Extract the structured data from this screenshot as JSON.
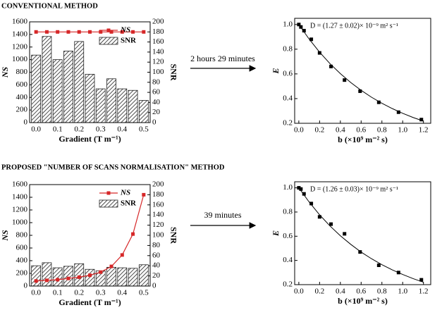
{
  "chart_data": [
    {
      "type": "combo",
      "section_title": "CONVENTIONAL METHOD",
      "arrow_label": "2 hours 29 minutes",
      "x_label": "Gradient (T m⁻¹)",
      "y_label": "NS",
      "y2_label": "SNR",
      "x": [
        0,
        0.05,
        0.1,
        0.15,
        0.2,
        0.25,
        0.3,
        0.35,
        0.4,
        0.45,
        0.5
      ],
      "xlim": [
        -0.03,
        0.53
      ],
      "xticks": [
        {
          "value": 0,
          "label": "0.0"
        },
        0.1,
        0.2,
        0.3,
        0.4,
        0.5
      ],
      "ylim": [
        0,
        1600
      ],
      "yticks": [
        0,
        200,
        400,
        600,
        800,
        1000,
        1200,
        1400,
        1600
      ],
      "y2lim": [
        0,
        200
      ],
      "y2ticks": [
        0,
        20,
        40,
        60,
        80,
        100,
        120,
        140,
        160,
        180,
        200
      ],
      "legend": "upper right",
      "series": [
        {
          "name": "NS",
          "color": "#d62728",
          "kind": "line",
          "values": [
            1440,
            1440,
            1440,
            1440,
            1440,
            1440,
            1440,
            1440,
            1440,
            1440,
            1440
          ]
        },
        {
          "name": "SNR",
          "color": "#555555",
          "kind": "bar",
          "axis": "y2",
          "values": [
            134,
            171,
            125,
            142,
            161,
            96,
            67,
            87,
            67,
            64,
            44
          ]
        }
      ]
    },
    {
      "type": "scatter",
      "annotation": "D = (1.27 ± 0.02)× 10⁻⁹ m² s⁻¹",
      "x_label": "b (×10⁹ m⁻² s)",
      "y_label": "E",
      "color": "#000000",
      "x": [
        0,
        0.02,
        0.05,
        0.12,
        0.2,
        0.31,
        0.44,
        0.59,
        0.77,
        0.96,
        1.18
      ],
      "values": [
        1.0,
        0.98,
        0.95,
        0.88,
        0.77,
        0.66,
        0.55,
        0.46,
        0.37,
        0.29,
        0.23
      ],
      "fit": {
        "x": [
          0,
          0.1,
          0.2,
          0.3,
          0.4,
          0.5,
          0.6,
          0.7,
          0.8,
          0.9,
          1.0,
          1.1,
          1.2
        ],
        "values": [
          1,
          0.881,
          0.776,
          0.683,
          0.602,
          0.53,
          0.467,
          0.411,
          0.362,
          0.319,
          0.281,
          0.247,
          0.218
        ]
      },
      "xlim": [
        -0.04,
        1.27
      ],
      "xticks": [
        {
          "value": 0,
          "label": "0.0"
        },
        0.2,
        0.4,
        0.6,
        0.8,
        {
          "value": 1,
          "label": "1.0"
        },
        1.2
      ],
      "ylim": [
        0.2,
        1.05
      ],
      "yticks": [
        0.2,
        0.4,
        0.6,
        0.8,
        {
          "value": 1,
          "label": "1.0"
        }
      ]
    },
    {
      "type": "combo",
      "section_title": "PROPOSED \"NUMBER OF SCANS NORMALISATION\" METHOD",
      "arrow_label": "39 minutes",
      "x_label": "Gradient (T m⁻¹)",
      "y_label": "NS",
      "y2_label": "SNR",
      "x": [
        0,
        0.05,
        0.1,
        0.15,
        0.2,
        0.25,
        0.3,
        0.35,
        0.4,
        0.45,
        0.5
      ],
      "xlim": [
        -0.03,
        0.53
      ],
      "xticks": [
        {
          "value": 0,
          "label": "0.0"
        },
        0.1,
        0.2,
        0.3,
        0.4,
        0.5
      ],
      "ylim": [
        0,
        1600
      ],
      "yticks": [
        0,
        200,
        400,
        600,
        800,
        1000,
        1200,
        1400,
        1600
      ],
      "y2lim": [
        0,
        200
      ],
      "y2ticks": [
        0,
        20,
        40,
        60,
        80,
        100,
        120,
        140,
        160,
        180,
        200
      ],
      "legend": "upper right",
      "series": [
        {
          "name": "NS",
          "color": "#d62728",
          "kind": "line",
          "values": [
            80,
            90,
            100,
            120,
            140,
            170,
            220,
            310,
            490,
            820,
            1440
          ]
        },
        {
          "name": "SNR",
          "color": "#555555",
          "kind": "bar",
          "axis": "y2",
          "values": [
            40,
            46,
            36,
            39,
            44,
            33,
            30,
            37,
            36,
            35,
            42
          ]
        }
      ]
    },
    {
      "type": "scatter",
      "annotation": "D = (1.26 ± 0.03)× 10⁻⁹ m² s⁻¹",
      "x_label": "b (×10⁹ m⁻² s)",
      "y_label": "E",
      "color": "#000000",
      "x": [
        0,
        0.02,
        0.05,
        0.12,
        0.2,
        0.31,
        0.44,
        0.59,
        0.77,
        0.96,
        1.18
      ],
      "values": [
        1.0,
        0.99,
        0.95,
        0.87,
        0.76,
        0.7,
        0.62,
        0.47,
        0.36,
        0.3,
        0.24
      ],
      "fit": {
        "x": [
          0,
          0.1,
          0.2,
          0.3,
          0.4,
          0.5,
          0.6,
          0.7,
          0.8,
          0.9,
          1.0,
          1.1,
          1.2
        ],
        "values": [
          1,
          0.882,
          0.777,
          0.685,
          0.604,
          0.533,
          0.469,
          0.414,
          0.365,
          0.322,
          0.284,
          0.25,
          0.22
        ]
      },
      "xlim": [
        -0.04,
        1.27
      ],
      "xticks": [
        {
          "value": 0,
          "label": "0.0"
        },
        0.2,
        0.4,
        0.6,
        0.8,
        {
          "value": 1,
          "label": "1.0"
        },
        1.2
      ],
      "ylim": [
        0.2,
        1.05
      ],
      "yticks": [
        0.2,
        0.4,
        0.6,
        0.8,
        {
          "value": 1,
          "label": "1.0"
        }
      ]
    }
  ]
}
